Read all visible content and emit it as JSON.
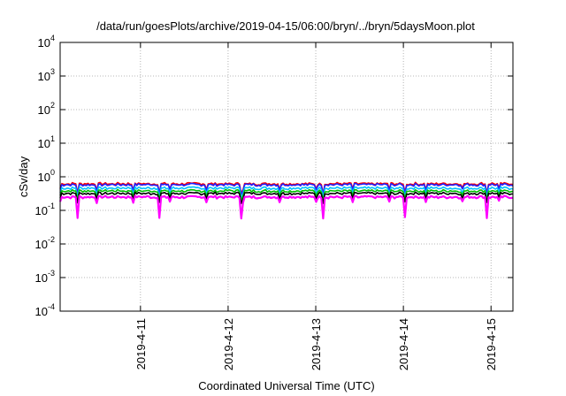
{
  "chart_data": {
    "type": "line",
    "title": "/data/run/goesPlots/archive/2019-04-15/06:00/bryn/../bryn/5daysMoon.plot",
    "xlabel": "Coordinated Universal Time (UTC)",
    "ylabel": "cSv/day",
    "y_scale": "log",
    "ylim": [
      0.0001,
      10000
    ],
    "xlim": [
      "2019-04-10T02:00",
      "2019-04-15T06:00"
    ],
    "grid": true,
    "legend": "none",
    "y_ticks": [
      {
        "base": "10",
        "exp": "-4",
        "value": 0.0001
      },
      {
        "base": "10",
        "exp": "-3",
        "value": 0.001
      },
      {
        "base": "10",
        "exp": "-2",
        "value": 0.01
      },
      {
        "base": "10",
        "exp": "-1",
        "value": 0.1
      },
      {
        "base": "10",
        "exp": "0",
        "value": 1
      },
      {
        "base": "10",
        "exp": "1",
        "value": 10
      },
      {
        "base": "10",
        "exp": "2",
        "value": 100
      },
      {
        "base": "10",
        "exp": "3",
        "value": 1000
      },
      {
        "base": "10",
        "exp": "4",
        "value": 10000
      }
    ],
    "x_ticks": [
      {
        "label": "2019-4-11",
        "value": "2019-04-11T00:00"
      },
      {
        "label": "2019-4-12",
        "value": "2019-04-12T00:00"
      },
      {
        "label": "2019-4-13",
        "value": "2019-04-13T00:00"
      },
      {
        "label": "2019-4-14",
        "value": "2019-04-14T00:00"
      },
      {
        "label": "2019-4-15",
        "value": "2019-04-15T00:00"
      }
    ],
    "series_base": [
      {
        "color": "#ff0000",
        "level": 0.62
      },
      {
        "color": "#1f1fff",
        "level": 0.58
      },
      {
        "color": "#00c0ff",
        "level": 0.46
      },
      {
        "color": "#00c000",
        "level": 0.38
      },
      {
        "color": "#000000",
        "level": 0.32
      },
      {
        "color": "#ff00ff",
        "level": 0.25
      }
    ]
  }
}
